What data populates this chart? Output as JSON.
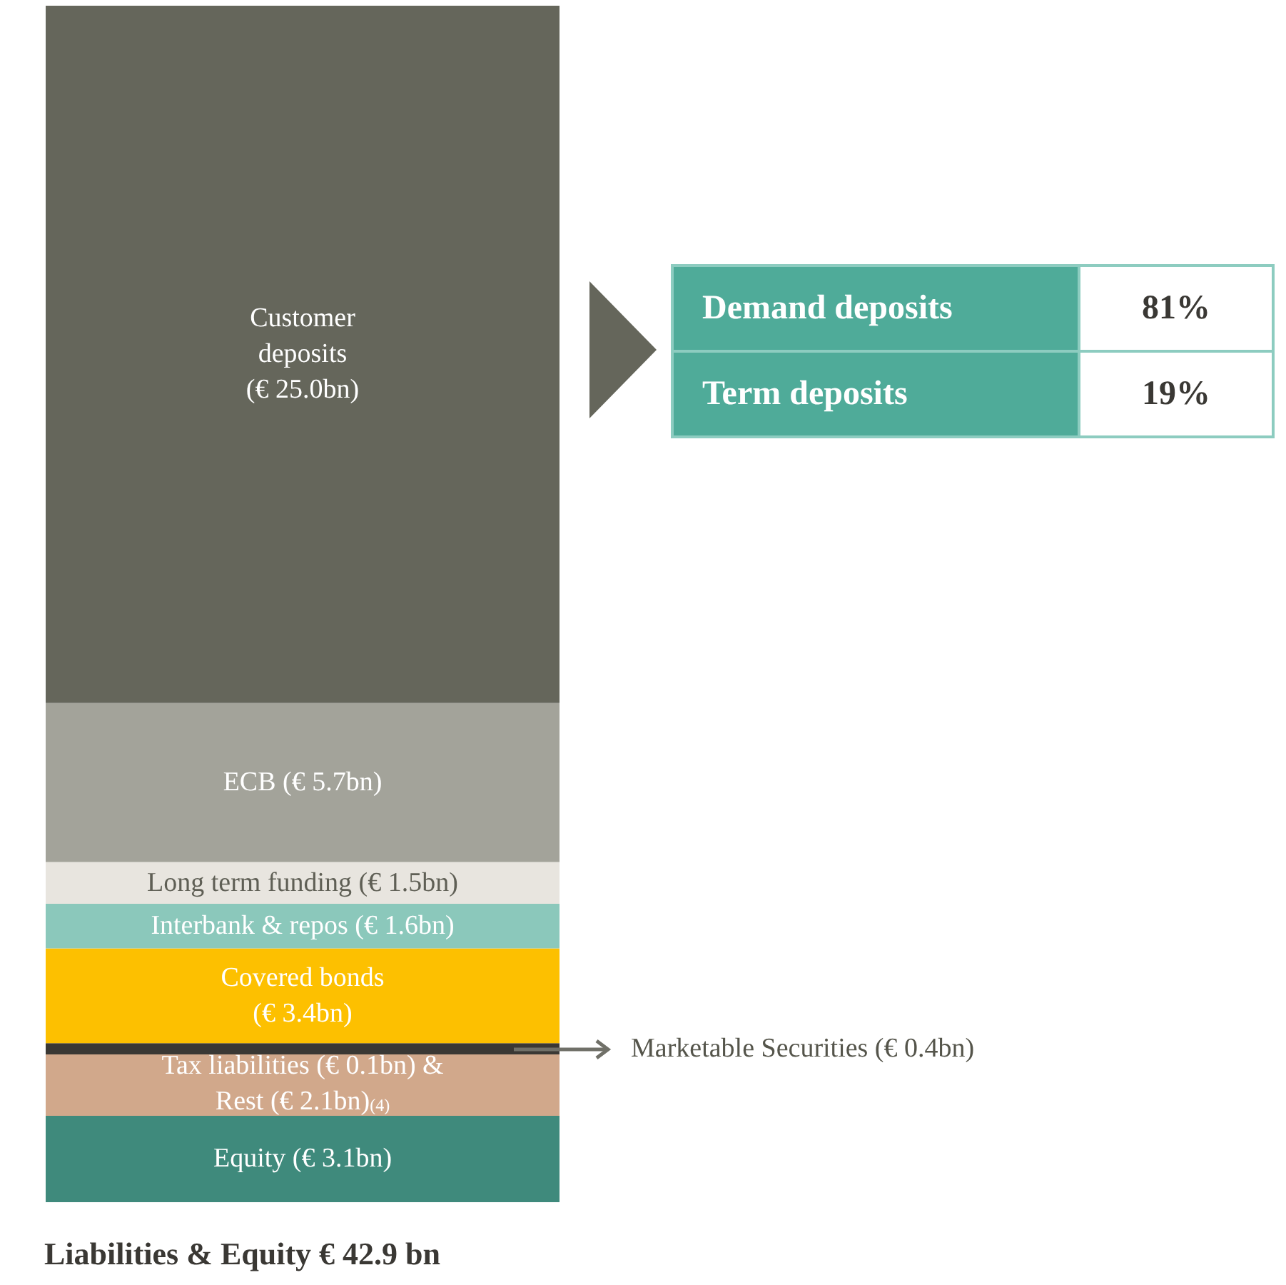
{
  "chart_data": [
    {
      "type": "bar",
      "stacked": true,
      "title": "Liabilities & Equity € 42.9 bn",
      "categories": [
        null
      ],
      "series": [
        {
          "color": "#3f8a7c",
          "values": [
            3.1
          ],
          "value_labels": [
            "Equity (€ 3.1bn)"
          ]
        },
        {
          "color": "#d1a88b",
          "values": [
            0.1
          ],
          "value_labels": [
            null
          ]
        },
        {
          "color": "#d1a88b",
          "values": [
            2.1
          ],
          "value_labels": [
            "Tax liabilities (€ 0.1bn) &\nRest (€ 2.1bn)$_{(4)}$"
          ]
        },
        {
          "color": "#3a3834",
          "values": [
            0.4
          ],
          "value_labels": [
            "Marketable Securities (€ 0.4bn)"
          ]
        },
        {
          "color": "#fdc000",
          "values": [
            3.4
          ],
          "value_labels": [
            "Covered bonds\n(€ 3.4bn)"
          ]
        },
        {
          "color": "#8bc8bb",
          "values": [
            1.6
          ],
          "value_labels": [
            "Interbank & repos (€ 1.6bn)"
          ]
        },
        {
          "color": "#e8e5df",
          "values": [
            1.5
          ],
          "value_labels": [
            "Long term funding (€ 1.5bn)"
          ]
        },
        {
          "color": "#a3a39a",
          "values": [
            5.7
          ],
          "value_labels": [
            "ECB (€ 5.7bn)"
          ]
        },
        {
          "color": "#65665b",
          "values": [
            25.0
          ],
          "value_labels": [
            "Customer\ndeposits\n(€ 25.0bn)"
          ]
        }
      ]
    },
    {
      "type": "other",
      "annotations": [
        "Demand deposits",
        "81%",
        "Term deposits",
        "19%"
      ]
    }
  ]
}
